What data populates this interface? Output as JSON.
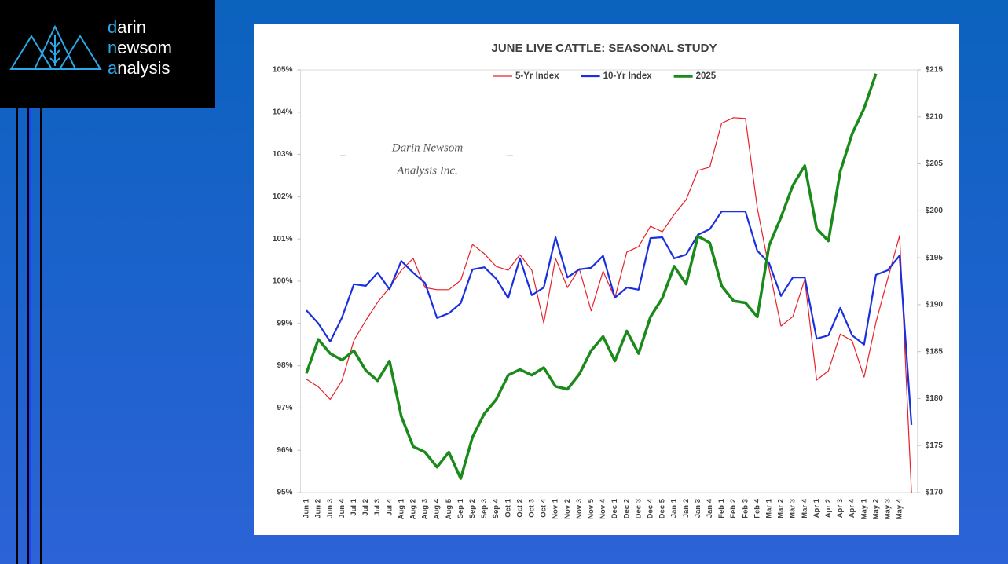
{
  "logo": {
    "lines": [
      "darin",
      "newsom",
      "analysis"
    ]
  },
  "chart_data": {
    "type": "line",
    "title": "JUNE LIVE CATTLE: SEASONAL STUDY",
    "watermark": [
      "Darin Newsom",
      "Analysis Inc."
    ],
    "categories": [
      "Jun 1",
      "Jun 2",
      "Jun 3",
      "Jun 4",
      "Jul 1",
      "Jul 2",
      "Jul 3",
      "Jul 4",
      "Aug 1",
      "Aug 2",
      "Aug 3",
      "Aug 4",
      "Aug 5",
      "Sep 1",
      "Sep 2",
      "Sep 3",
      "Sep 4",
      "Oct 1",
      "Oct 2",
      "Oct 3",
      "Oct 4",
      "Nov 1",
      "Nov 2",
      "Nov 3",
      "Nov 5",
      "Nov 4",
      "Dec 1",
      "Dec 2",
      "Dec 3",
      "Dec 4",
      "Dec 5",
      "Jan 1",
      "Jan 2",
      "Jan 3",
      "Jan 4",
      "Feb 1",
      "Feb 2",
      "Feb 3",
      "Feb 4",
      "Mar 1",
      "Mar 2",
      "Mar 3",
      "Mar 4",
      "Apr 1",
      "Apr 2",
      "Apr 3",
      "Apr 4",
      "May 1",
      "May 2",
      "May 3",
      "May 4",
      null
    ],
    "series": [
      {
        "name": "5-Yr Index",
        "color": "#e8202a",
        "width": 1.2,
        "values": [
          97.68,
          97.5,
          97.2,
          97.65,
          98.6,
          99.07,
          99.5,
          99.85,
          100.26,
          100.54,
          99.85,
          99.8,
          99.8,
          100.02,
          100.87,
          100.65,
          100.35,
          100.26,
          100.63,
          100.26,
          99.01,
          100.54,
          99.85,
          100.3,
          99.3,
          100.24,
          99.6,
          100.69,
          100.82,
          101.3,
          101.17,
          101.58,
          101.93,
          102.62,
          102.7,
          103.74,
          103.87,
          103.85,
          101.73,
          100.3,
          98.94,
          99.16,
          100.04,
          97.66,
          97.88,
          98.75,
          98.59,
          97.73,
          99.03,
          100.06,
          101.08,
          95.0
        ]
      },
      {
        "name": "10-Yr Index",
        "color": "#1a2fe0",
        "width": 2.2,
        "values": [
          99.31,
          99.0,
          98.57,
          99.14,
          99.93,
          99.89,
          100.2,
          99.81,
          100.48,
          100.2,
          99.96,
          99.13,
          99.24,
          99.48,
          100.28,
          100.33,
          100.06,
          99.6,
          100.54,
          99.67,
          99.85,
          101.04,
          100.09,
          100.28,
          100.32,
          100.6,
          99.61,
          99.85,
          99.8,
          101.02,
          101.04,
          100.54,
          100.63,
          101.1,
          101.23,
          101.65,
          101.65,
          101.65,
          100.72,
          100.43,
          99.65,
          100.09,
          100.09,
          98.64,
          98.72,
          99.37,
          98.72,
          98.5,
          100.15,
          100.26,
          100.61,
          96.6
        ]
      },
      {
        "name": "2025",
        "color": "#1a8a1a",
        "width": 3.5,
        "axis": "y2",
        "values": [
          182.7,
          186.3,
          184.8,
          184.1,
          185.1,
          183.0,
          181.9,
          184.0,
          178.1,
          174.9,
          174.3,
          172.7,
          174.3,
          171.5,
          175.9,
          178.4,
          179.9,
          182.5,
          183.1,
          182.5,
          183.3,
          181.3,
          181.0,
          182.6,
          185.1,
          186.6,
          184.0,
          187.2,
          184.8,
          188.7,
          190.7,
          194.1,
          192.2,
          197.3,
          196.6,
          192.0,
          190.4,
          190.2,
          188.7,
          196.3,
          199.3,
          202.7,
          204.8,
          198.1,
          196.8,
          204.2,
          208.2,
          210.9,
          214.6,
          null,
          null,
          null
        ]
      }
    ],
    "ylim": [
      95,
      105
    ],
    "yticks": [
      {
        "value": 95,
        "label": "95%"
      },
      {
        "value": 96,
        "label": "96%"
      },
      {
        "value": 97,
        "label": "97%"
      },
      {
        "value": 98,
        "label": "98%"
      },
      {
        "value": 99,
        "label": "99%"
      },
      {
        "value": 100,
        "label": "100%"
      },
      {
        "value": 101,
        "label": "101%"
      },
      {
        "value": 102,
        "label": "102%"
      },
      {
        "value": 103,
        "label": "103%"
      },
      {
        "value": 104,
        "label": "104%"
      },
      {
        "value": 105,
        "label": "105%"
      }
    ],
    "y2lim": [
      170,
      215
    ],
    "y2ticks": [
      {
        "value": 170,
        "label": "$170"
      },
      {
        "value": 175,
        "label": "$175"
      },
      {
        "value": 180,
        "label": "$180"
      },
      {
        "value": 185,
        "label": "$185"
      },
      {
        "value": 190,
        "label": "$190"
      },
      {
        "value": 195,
        "label": "$195"
      },
      {
        "value": 200,
        "label": "$200"
      },
      {
        "value": 205,
        "label": "$205"
      },
      {
        "value": 210,
        "label": "$210"
      },
      {
        "value": 215,
        "label": "$215"
      }
    ],
    "legend": "top"
  }
}
